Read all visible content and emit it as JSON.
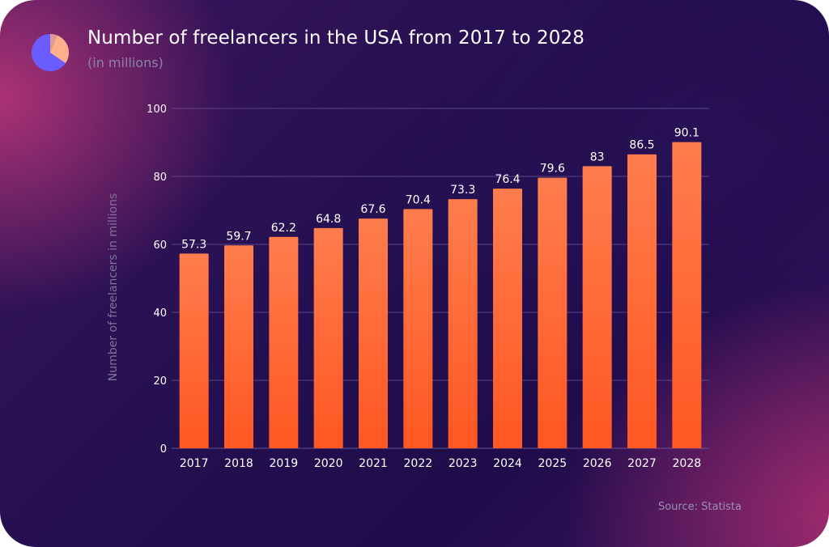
{
  "header": {
    "title": "Number of freelancers in the USA from 2017 to 2028",
    "subtitle": "(in millions)",
    "logo_icon": "pie-chart-icon"
  },
  "footer": {
    "source": "Source: Statista"
  },
  "colors": {
    "bar_top": "#ff7d4d",
    "bar_bottom": "#ff5722",
    "gridline": "#6d5a99",
    "text": "#ffffff",
    "axis_label": "#7f7498",
    "logo_main": "#6b5cff",
    "logo_slice": "#ffb08a"
  },
  "chart_data": {
    "type": "bar",
    "title": "Number of freelancers in the USA from 2017 to 2028",
    "subtitle": "(in millions)",
    "xlabel": "",
    "ylabel": "Number of freelancers in millions",
    "categories": [
      "2017",
      "2018",
      "2019",
      "2020",
      "2021",
      "2022",
      "2023",
      "2024",
      "2025",
      "2026",
      "2027",
      "2028"
    ],
    "values": [
      57.3,
      59.7,
      62.2,
      64.8,
      67.6,
      70.4,
      73.3,
      76.4,
      79.6,
      83,
      86.5,
      90.1
    ],
    "data_labels": [
      "57.3",
      "59.7",
      "62.2",
      "64.8",
      "67.6",
      "70.4",
      "73.3",
      "76.4",
      "79.6",
      "83",
      "86.5",
      "90.1"
    ],
    "ylim": [
      0,
      100
    ],
    "yticks": [
      0,
      20,
      40,
      60,
      80,
      100
    ],
    "grid": true,
    "legend": "none"
  }
}
